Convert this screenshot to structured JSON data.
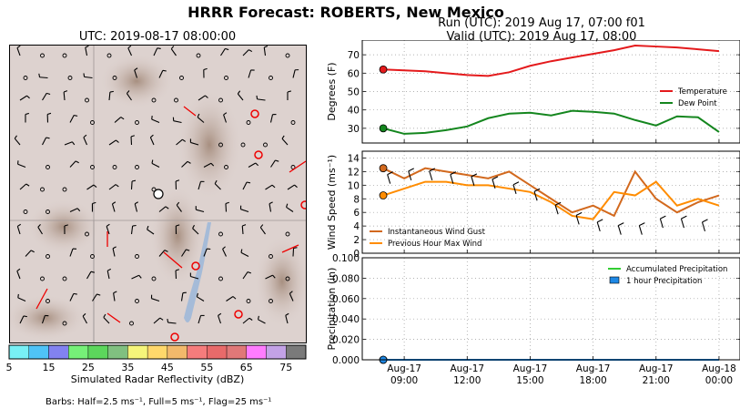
{
  "header": {
    "title": "HRRR Forecast: ROBERTS, New Mexico",
    "run": "Run (UTC): 2019 Aug 17, 07:00 f01",
    "valid": "Valid (UTC): 2019 Aug 17, 08:00"
  },
  "map": {
    "title": "UTC: 2019-08-17 08:00:00",
    "colorbar_label": "Simulated Radar Reflectivity (dBZ)",
    "colorbar_ticks": [
      "5",
      "15",
      "25",
      "35",
      "45",
      "55",
      "65",
      "75"
    ],
    "colorbar_colors": [
      "#78f0f5",
      "#4fc3f7",
      "#8282f0",
      "#76f078",
      "#5cd65c",
      "#80c080",
      "#f5f57a",
      "#ffd86b",
      "#f2b96b",
      "#f57c7c",
      "#e86a6a",
      "#e07878",
      "#ff7cff",
      "#c3a2e6",
      "#7a7a7a"
    ],
    "barbs_note": "Barbs: Half=2.5 ms⁻¹, Full=5 ms⁻¹, Flag=25 ms⁻¹"
  },
  "chart_data": [
    {
      "type": "line",
      "ylabel": "Degrees (F)",
      "ylim": [
        22,
        78
      ],
      "yticks": [
        30,
        40,
        50,
        60,
        70
      ],
      "x_hours": [
        8,
        9,
        10,
        11,
        12,
        13,
        14,
        15,
        16,
        17,
        18,
        19,
        20,
        21,
        22,
        23,
        24
      ],
      "series": [
        {
          "name": "Temperature",
          "color": "#e41a1c",
          "values": [
            62,
            61.5,
            61,
            60,
            59,
            58.5,
            60.5,
            64,
            66.5,
            68.5,
            70.5,
            72.5,
            75,
            74.5,
            74,
            73,
            72
          ]
        },
        {
          "name": "Dew Point",
          "color": "#14861e",
          "values": [
            30,
            27,
            27.5,
            29,
            31,
            35.5,
            38,
            38.5,
            37,
            39.5,
            39,
            38,
            34.5,
            31.5,
            36.5,
            36,
            28
          ]
        }
      ],
      "legend": "right",
      "grid": true
    },
    {
      "type": "line",
      "ylabel": "Wind Speed (ms⁻¹)",
      "ylim": [
        0,
        15
      ],
      "yticks": [
        0,
        2,
        4,
        6,
        8,
        10,
        12,
        14
      ],
      "x_hours": [
        8,
        9,
        10,
        11,
        12,
        13,
        14,
        15,
        16,
        17,
        18,
        19,
        20,
        21,
        22,
        23,
        24
      ],
      "series": [
        {
          "name": "Instantaneous Wind Gust",
          "color": "#d2691e",
          "values": [
            12.5,
            11,
            12.5,
            12,
            11.5,
            11,
            12,
            10,
            8,
            6,
            7,
            5.5,
            12,
            8,
            6,
            7.5,
            8.5
          ]
        },
        {
          "name": "Previous Hour Max Wind",
          "color": "#ff8c00",
          "values": [
            8.5,
            9.5,
            10.5,
            10.5,
            10,
            10,
            9.5,
            9,
            7.5,
            5.5,
            5,
            9,
            8.5,
            10.5,
            7,
            8,
            7
          ]
        }
      ],
      "legend": "lower-left",
      "grid": true
    },
    {
      "type": "line",
      "ylabel": "Precipitation (in)",
      "ylim": [
        0,
        0.1
      ],
      "yticks": [
        "0.000",
        "0.020",
        "0.040",
        "0.060",
        "0.080",
        "0.100"
      ],
      "x_hours": [
        8,
        24
      ],
      "series": [
        {
          "name": "Accumulated Precipitation",
          "color": "#32cd32",
          "values": [
            0,
            0
          ]
        },
        {
          "name": "1 hour Precipitation",
          "color": "#1e88e5",
          "values": [
            0,
            0
          ]
        }
      ],
      "xticks": [
        {
          "line1": "Aug-17",
          "line2": "09:00"
        },
        {
          "line1": "Aug-17",
          "line2": "12:00"
        },
        {
          "line1": "Aug-17",
          "line2": "15:00"
        },
        {
          "line1": "Aug-17",
          "line2": "18:00"
        },
        {
          "line1": "Aug-17",
          "line2": "21:00"
        },
        {
          "line1": "Aug-18",
          "line2": "00:00"
        }
      ],
      "legend": "top-right",
      "grid": true
    }
  ]
}
